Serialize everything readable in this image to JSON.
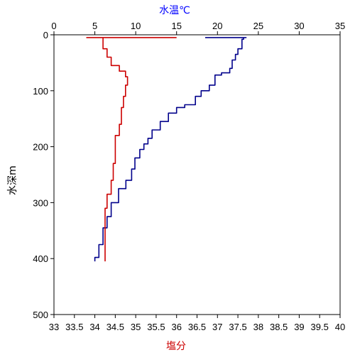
{
  "chart_data": {
    "type": "line",
    "axes": {
      "temperature": {
        "position": "top",
        "label": "水温℃",
        "color": "#0000ff",
        "range": [
          0,
          35
        ],
        "ticks": [
          "0",
          "5",
          "10",
          "15",
          "20",
          "25",
          "30",
          "35"
        ]
      },
      "salinity": {
        "position": "bottom",
        "label": "塩分",
        "color": "#cc0000",
        "range": [
          33,
          40
        ],
        "ticks": [
          "33",
          "33.5",
          "34",
          "34.5",
          "35",
          "35.5",
          "36",
          "36.5",
          "37",
          "37.5",
          "38",
          "38.5",
          "39",
          "39.5",
          "40"
        ]
      },
      "depth": {
        "position": "left",
        "label": "水深m",
        "color": "#000000",
        "range": [
          0,
          500
        ],
        "inverted": true,
        "ticks": [
          "0",
          "100",
          "200",
          "300",
          "400",
          "500"
        ]
      }
    },
    "series": [
      {
        "axis": "temperature",
        "color": "#00008b",
        "points": [
          [
            18.5,
            5
          ],
          [
            23.5,
            5
          ],
          [
            23.2,
            8
          ],
          [
            23.0,
            15
          ],
          [
            23.0,
            25
          ],
          [
            22.5,
            35
          ],
          [
            22.2,
            45
          ],
          [
            21.8,
            60
          ],
          [
            21.5,
            68
          ],
          [
            20.5,
            72
          ],
          [
            19.7,
            90
          ],
          [
            19.0,
            100
          ],
          [
            18.0,
            110
          ],
          [
            17.3,
            125
          ],
          [
            16.0,
            130
          ],
          [
            15.0,
            140
          ],
          [
            14.0,
            155
          ],
          [
            13.0,
            170
          ],
          [
            12.0,
            185
          ],
          [
            11.5,
            195
          ],
          [
            11.0,
            205
          ],
          [
            10.5,
            220
          ],
          [
            9.9,
            240
          ],
          [
            9.5,
            260
          ],
          [
            8.8,
            275
          ],
          [
            7.9,
            300
          ],
          [
            7.0,
            325
          ],
          [
            6.5,
            345
          ],
          [
            6.0,
            375
          ],
          [
            5.5,
            398
          ],
          [
            5.0,
            405
          ]
        ]
      },
      {
        "axis": "salinity",
        "color": "#cc0000",
        "points": [
          [
            36.0,
            5
          ],
          [
            33.8,
            5
          ],
          [
            34.2,
            8
          ],
          [
            34.2,
            15
          ],
          [
            34.2,
            25
          ],
          [
            34.3,
            40
          ],
          [
            34.4,
            55
          ],
          [
            34.6,
            65
          ],
          [
            34.75,
            75
          ],
          [
            34.8,
            90
          ],
          [
            34.75,
            110
          ],
          [
            34.7,
            130
          ],
          [
            34.65,
            160
          ],
          [
            34.6,
            180
          ],
          [
            34.5,
            200
          ],
          [
            34.5,
            230
          ],
          [
            34.45,
            260
          ],
          [
            34.4,
            285
          ],
          [
            34.3,
            310
          ],
          [
            34.25,
            330
          ],
          [
            34.25,
            360
          ],
          [
            34.25,
            400
          ],
          [
            34.25,
            405
          ]
        ]
      }
    ]
  }
}
